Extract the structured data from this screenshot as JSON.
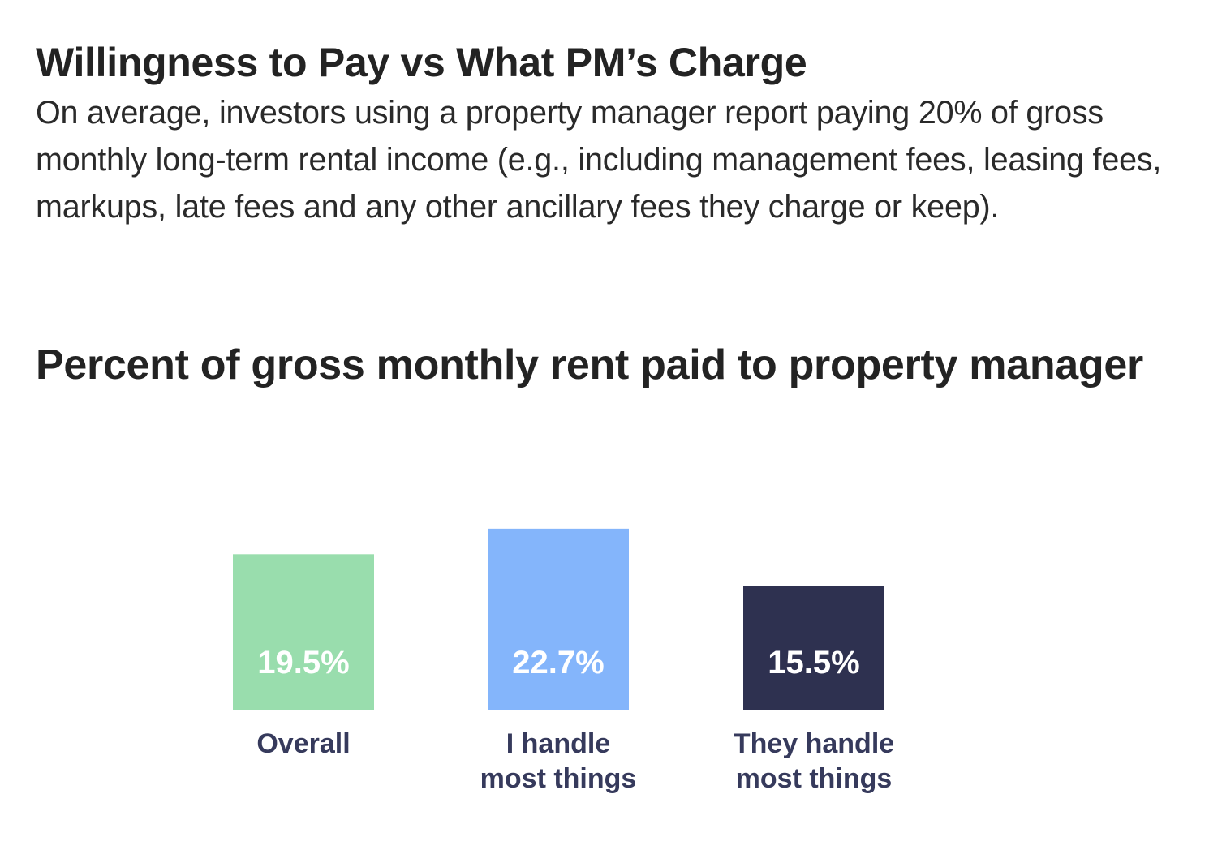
{
  "header": {
    "title": "Willingness to Pay vs What PM’s Charge",
    "description": "On average, investors using a property manager report paying 20% of gross monthly long-term rental income (e.g., including management fees, leasing fees, markups, late fees and any other ancillary fees they charge or keep)."
  },
  "chart_data": {
    "type": "bar",
    "title": "Percent of gross monthly rent paid to property manager",
    "categories": [
      "Overall",
      "I handle most things",
      "They handle most things"
    ],
    "category_lines": [
      [
        "Overall"
      ],
      [
        "I handle",
        "most things"
      ],
      [
        "They handle",
        "most things"
      ]
    ],
    "values": [
      19.5,
      22.7,
      15.5
    ],
    "value_labels": [
      "19.5%",
      "22.7%",
      "15.5%"
    ],
    "colors": [
      "#99ddad",
      "#84b5fb",
      "#2e3150"
    ],
    "xlabel": "",
    "ylabel": "",
    "grid": false,
    "legend": "none"
  }
}
